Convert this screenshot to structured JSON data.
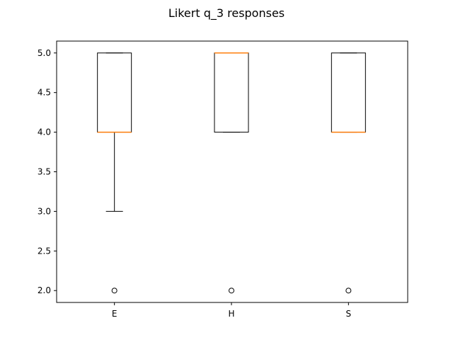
{
  "chart_data": {
    "type": "box",
    "title": "Likert q_3 responses",
    "xlabel": "",
    "ylabel": "",
    "categories": [
      "E",
      "H",
      "S"
    ],
    "ylim": [
      1.85,
      5.15
    ],
    "yticks": [
      2.0,
      2.5,
      3.0,
      3.5,
      4.0,
      4.5,
      5.0
    ],
    "ytick_labels": [
      "2.0",
      "2.5",
      "3.0",
      "3.5",
      "4.0",
      "4.5",
      "5.0"
    ],
    "boxes": [
      {
        "category": "E",
        "whisker_low": 3.0,
        "q1": 4.0,
        "median": 4.0,
        "q3": 5.0,
        "whisker_high": 5.0,
        "outliers": [
          2.0
        ]
      },
      {
        "category": "H",
        "whisker_low": 4.0,
        "q1": 4.0,
        "median": 5.0,
        "q3": 5.0,
        "whisker_high": 5.0,
        "outliers": [
          2.0
        ]
      },
      {
        "category": "S",
        "whisker_low": 4.0,
        "q1": 4.0,
        "median": 4.0,
        "q3": 5.0,
        "whisker_high": 5.0,
        "outliers": [
          2.0
        ]
      }
    ],
    "grid": false,
    "colors": {
      "box": "#000000",
      "median": "#ff7f0e",
      "outlier": "#000000"
    }
  }
}
